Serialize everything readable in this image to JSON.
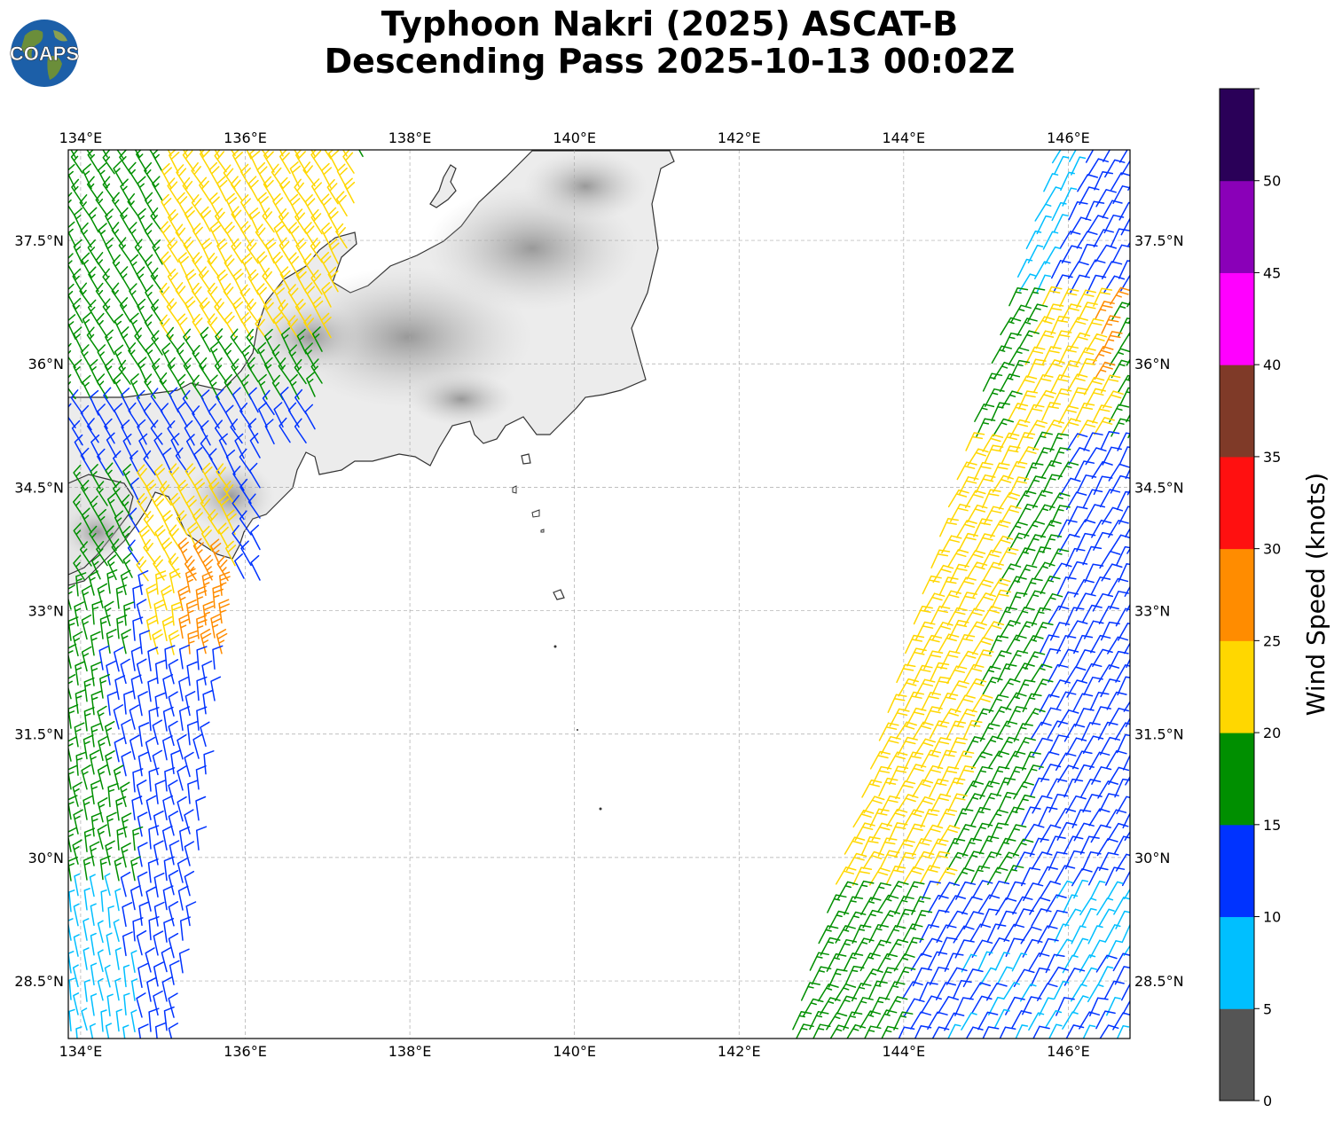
{
  "title": {
    "line1": "Typhoon Nakri (2025) ASCAT-B",
    "line2": "Descending Pass 2025-10-13 00:02Z"
  },
  "logo": {
    "icon": "coaps-globe-logo",
    "text": "COAPS"
  },
  "map": {
    "lon_range": [
      133.85,
      146.75
    ],
    "lat_range": [
      27.8,
      38.6
    ],
    "lon_ticks": [
      "134°E",
      "136°E",
      "138°E",
      "140°E",
      "142°E",
      "144°E",
      "146°E"
    ],
    "lon_values": [
      134,
      136,
      138,
      140,
      142,
      144,
      146
    ],
    "lat_ticks": [
      "37.5°N",
      "36°N",
      "34.5°N",
      "33°N",
      "31.5°N",
      "30°N",
      "28.5°N"
    ],
    "lat_values": [
      37.5,
      36,
      34.5,
      33,
      31.5,
      30,
      28.5
    ],
    "grid": true,
    "terrain": "grayscale elevation shading over land",
    "swaths": "two ASCAT-B descending swaths: western (134°E–137°E) and eastern (142.5°E–146.7°E)"
  },
  "colorbar": {
    "label": "Wind Speed (knots)",
    "ticks": [
      "0",
      "5",
      "10",
      "15",
      "20",
      "25",
      "30",
      "35",
      "40",
      "45",
      "50"
    ],
    "bins": [
      {
        "range": [
          0,
          5
        ],
        "color": "#555555"
      },
      {
        "range": [
          5,
          10
        ],
        "color": "#00bfff"
      },
      {
        "range": [
          10,
          15
        ],
        "color": "#0033ff"
      },
      {
        "range": [
          15,
          20
        ],
        "color": "#008f00"
      },
      {
        "range": [
          20,
          25
        ],
        "color": "#ffd700"
      },
      {
        "range": [
          25,
          30
        ],
        "color": "#ff8c00"
      },
      {
        "range": [
          30,
          35
        ],
        "color": "#ff1010"
      },
      {
        "range": [
          35,
          40
        ],
        "color": "#7f3a28"
      },
      {
        "range": [
          40,
          45
        ],
        "color": "#ff00ff"
      },
      {
        "range": [
          45,
          50
        ],
        "color": "#8a00b8"
      },
      {
        "range": [
          50,
          55
        ],
        "color": "#2a0058"
      }
    ]
  }
}
